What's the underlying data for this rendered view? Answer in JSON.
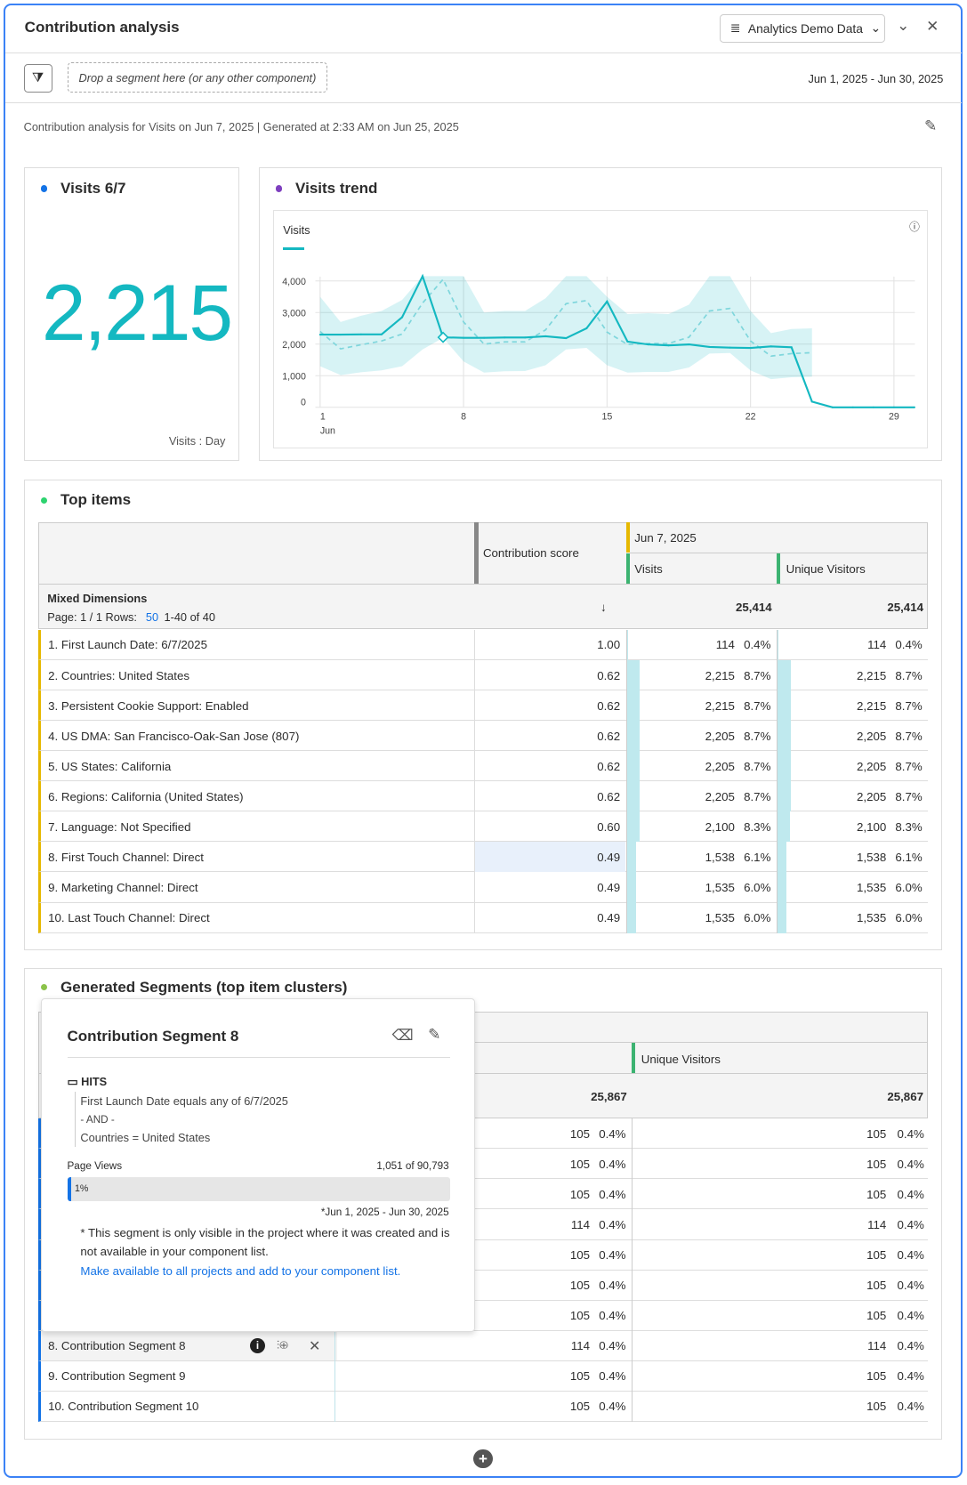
{
  "header": {
    "title": "Contribution analysis",
    "data_source": "Analytics Demo Data"
  },
  "toolbar": {
    "drop_zone": "Drop a segment here (or any other component)",
    "date_range": "Jun 1, 2025 - Jun 30, 2025"
  },
  "info_line": "Contribution analysis for Visits on Jun 7, 2025 | Generated at 2:33 AM on Jun 25, 2025",
  "colors": {
    "accent": "#14b8c1",
    "border": "#3b82f6",
    "link": "#1473e6"
  },
  "visits_panel": {
    "title": "Visits 6/7",
    "value": "2,215",
    "footer": "Visits : Day",
    "dot_color": "#1473e6"
  },
  "trend_panel": {
    "title": "Visits trend",
    "dot_color": "#7e3fbf"
  },
  "chart_data": {
    "type": "line",
    "legend": "Visits",
    "x_ticks": [
      "1",
      "8",
      "15",
      "22",
      "29"
    ],
    "x_sub": "Jun",
    "y_ticks": [
      "0",
      "1,000",
      "2,000",
      "3,000",
      "4,000"
    ],
    "ylim": [
      0,
      4150
    ],
    "x": [
      1,
      2,
      3,
      4,
      5,
      6,
      7,
      8,
      9,
      10,
      11,
      12,
      13,
      14,
      15,
      16,
      17,
      18,
      19,
      20,
      21,
      22,
      23,
      24,
      25,
      26,
      27,
      28,
      29,
      30
    ],
    "series": [
      {
        "name": "Visits",
        "values": [
          2300,
          2300,
          2310,
          2310,
          2850,
          4150,
          2215,
          2200,
          2200,
          2210,
          2210,
          2250,
          2190,
          2500,
          3350,
          2080,
          1990,
          1960,
          1990,
          1910,
          1890,
          1880,
          1930,
          1900,
          180,
          0,
          0,
          0,
          0,
          0
        ]
      }
    ],
    "expected": [
      2400,
      1850,
      1980,
      2100,
      2320,
      3300,
      4050,
      2700,
      2000,
      2070,
      2070,
      2450,
      3280,
      3380,
      2380,
      1990,
      2020,
      2020,
      2220,
      3050,
      3130,
      2100,
      1620,
      1700,
      1730
    ],
    "band_upper": [
      3500,
      2700,
      2900,
      3050,
      3400,
      4150,
      4150,
      4150,
      3000,
      3050,
      3050,
      3450,
      4150,
      4150,
      3500,
      2950,
      2980,
      2950,
      3250,
      4150,
      4150,
      3050,
      2350,
      2480,
      2500
    ],
    "band_lower": [
      1300,
      1020,
      1110,
      1170,
      1300,
      1830,
      2200,
      1450,
      1100,
      1140,
      1150,
      1330,
      1830,
      1880,
      1330,
      1100,
      1120,
      1120,
      1260,
      1700,
      1720,
      1170,
      890,
      950,
      970
    ],
    "highlight_day": 7
  },
  "top_items": {
    "title": "Top items",
    "dot_color": "#2dd36f",
    "col_score": "Contribution score",
    "date_header": "Jun 7, 2025",
    "col_visits": "Visits",
    "col_uv": "Unique Visitors",
    "dim_title": "Mixed Dimensions",
    "page_info": "Page: 1 / 1 Rows:",
    "rows_value": "50",
    "range": "1-40 of 40",
    "sort_icon": "↓",
    "total_visits": "25,414",
    "total_uv": "25,414",
    "rows": [
      {
        "label": "1.  First Launch Date: 6/7/2025",
        "score": "1.00",
        "visits": "114",
        "vp": "0.4%",
        "uv": "114",
        "up": "0.4%",
        "pct": 0.4
      },
      {
        "label": "2.  Countries: United States",
        "score": "0.62",
        "visits": "2,215",
        "vp": "8.7%",
        "uv": "2,215",
        "up": "8.7%",
        "pct": 8.7
      },
      {
        "label": "3.  Persistent Cookie Support: Enabled",
        "score": "0.62",
        "visits": "2,215",
        "vp": "8.7%",
        "uv": "2,215",
        "up": "8.7%",
        "pct": 8.7
      },
      {
        "label": "4.  US DMA: San Francisco-Oak-San Jose (807)",
        "score": "0.62",
        "visits": "2,205",
        "vp": "8.7%",
        "uv": "2,205",
        "up": "8.7%",
        "pct": 8.7
      },
      {
        "label": "5.  US States: California",
        "score": "0.62",
        "visits": "2,205",
        "vp": "8.7%",
        "uv": "2,205",
        "up": "8.7%",
        "pct": 8.7
      },
      {
        "label": "6.  Regions: California (United States)",
        "score": "0.62",
        "visits": "2,205",
        "vp": "8.7%",
        "uv": "2,205",
        "up": "8.7%",
        "pct": 8.7
      },
      {
        "label": "7.  Language: Not Specified",
        "score": "0.60",
        "visits": "2,100",
        "vp": "8.3%",
        "uv": "2,100",
        "up": "8.3%",
        "pct": 8.3
      },
      {
        "label": "8.  First Touch Channel: Direct",
        "score": "0.49",
        "visits": "1,538",
        "vp": "6.1%",
        "uv": "1,538",
        "up": "6.1%",
        "pct": 6.1
      },
      {
        "label": "9.  Marketing Channel: Direct",
        "score": "0.49",
        "visits": "1,535",
        "vp": "6.0%",
        "uv": "1,535",
        "up": "6.0%",
        "pct": 6.0
      },
      {
        "label": "10.  Last Touch Channel: Direct",
        "score": "0.49",
        "visits": "1,535",
        "vp": "6.0%",
        "uv": "1,535",
        "up": "6.0%",
        "pct": 6.0
      }
    ]
  },
  "segments": {
    "title": "Generated Segments (top item clusters)",
    "dot_color": "#8bc34a",
    "col_uv": "Unique Visitors",
    "total_visits": "25,867",
    "total_uv": "25,867",
    "rows": [
      {
        "label": "",
        "visits": "105",
        "vp": "0.4%",
        "uv": "105",
        "up": "0.4%"
      },
      {
        "label": "",
        "visits": "105",
        "vp": "0.4%",
        "uv": "105",
        "up": "0.4%"
      },
      {
        "label": "",
        "visits": "105",
        "vp": "0.4%",
        "uv": "105",
        "up": "0.4%"
      },
      {
        "label": "",
        "visits": "114",
        "vp": "0.4%",
        "uv": "114",
        "up": "0.4%"
      },
      {
        "label": "",
        "visits": "105",
        "vp": "0.4%",
        "uv": "105",
        "up": "0.4%"
      },
      {
        "label": "",
        "visits": "105",
        "vp": "0.4%",
        "uv": "105",
        "up": "0.4%"
      },
      {
        "label": "",
        "visits": "105",
        "vp": "0.4%",
        "uv": "105",
        "up": "0.4%"
      },
      {
        "label": "8.  Contribution Segment 8",
        "visits": "114",
        "vp": "0.4%",
        "uv": "114",
        "up": "0.4%"
      },
      {
        "label": "9.  Contribution Segment 9",
        "visits": "105",
        "vp": "0.4%",
        "uv": "105",
        "up": "0.4%"
      },
      {
        "label": "10.  Contribution Segment 10",
        "visits": "105",
        "vp": "0.4%",
        "uv": "105",
        "up": "0.4%"
      }
    ]
  },
  "popover": {
    "title": "Contribution Segment 8",
    "container": "HITS",
    "rule1": "First Launch Date equals any of 6/7/2025",
    "and": "- AND -",
    "rule2": "Countries = United States",
    "metric": "Page Views",
    "metric_count": "1,051 of 90,793",
    "percent": "1%",
    "percent_value": 1,
    "date_note": "*Jun 1, 2025 - Jun 30, 2025",
    "note": "* This segment is only visible in the project where it was created and is not available in your component list.",
    "link": "Make available to all projects and add to your component list."
  }
}
